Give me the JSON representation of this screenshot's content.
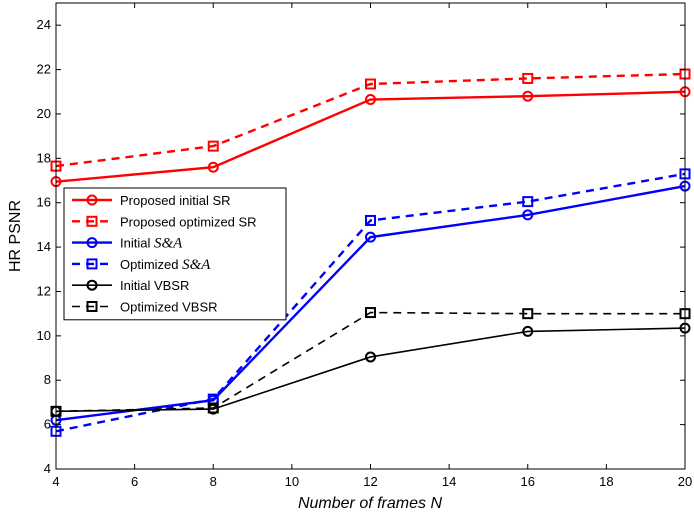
{
  "chart_data": {
    "type": "line",
    "title": "",
    "xlabel": "Number of frames N",
    "ylabel": "HR PSNR",
    "xlim": [
      4,
      20
    ],
    "ylim": [
      4,
      25
    ],
    "xticks": [
      4,
      6,
      8,
      10,
      12,
      14,
      16,
      18,
      20
    ],
    "yticks": [
      4,
      6,
      8,
      10,
      12,
      14,
      16,
      18,
      20,
      22,
      24
    ],
    "grid": false,
    "legend_position": "middle-left",
    "x": [
      4,
      8,
      12,
      16,
      20
    ],
    "series": [
      {
        "name": "Proposed initial SR",
        "name_prefix": "",
        "name_italic": "",
        "values": [
          16.95,
          17.6,
          20.65,
          20.8,
          21.0
        ],
        "color": "#ff0000",
        "dash": "solid",
        "marker": "circle"
      },
      {
        "name": "Proposed optimized SR",
        "name_prefix": "",
        "name_italic": "",
        "values": [
          17.65,
          18.55,
          21.35,
          21.6,
          21.8
        ],
        "color": "#ff0000",
        "dash": "dashed",
        "marker": "square"
      },
      {
        "name": "",
        "name_prefix": "Initial ",
        "name_italic": "S&A",
        "values": [
          6.2,
          7.1,
          14.45,
          15.45,
          16.75
        ],
        "color": "#0000ff",
        "dash": "solid",
        "marker": "circle"
      },
      {
        "name": "",
        "name_prefix": "Optimized ",
        "name_italic": "S&A",
        "values": [
          5.7,
          7.15,
          15.2,
          16.05,
          17.3
        ],
        "color": "#0000ff",
        "dash": "dashed",
        "marker": "square"
      },
      {
        "name": "Initial VBSR",
        "name_prefix": "",
        "name_italic": "",
        "values": [
          6.6,
          6.7,
          9.05,
          10.2,
          10.35
        ],
        "color": "#000000",
        "dash": "solid",
        "marker": "circle"
      },
      {
        "name": "Optimized VBSR",
        "name_prefix": "",
        "name_italic": "",
        "values": [
          6.6,
          6.75,
          11.05,
          11.0,
          11.0
        ],
        "color": "#000000",
        "dash": "dashed",
        "marker": "square"
      }
    ]
  }
}
